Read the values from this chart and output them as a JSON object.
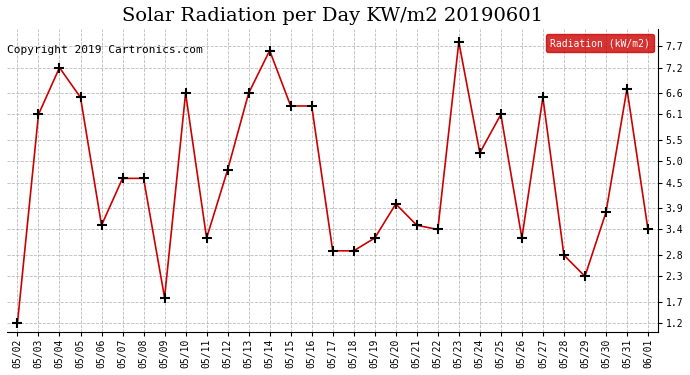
{
  "title": "Solar Radiation per Day KW/m2 20190601",
  "copyright_text": "Copyright 2019 Cartronics.com",
  "legend_label": "Radiation (kW/m2)",
  "dates": [
    "05/02",
    "05/03",
    "05/04",
    "05/05",
    "05/06",
    "05/07",
    "05/08",
    "05/09",
    "05/10",
    "05/11",
    "05/12",
    "05/13",
    "05/14",
    "05/15",
    "05/16",
    "05/17",
    "05/18",
    "05/19",
    "05/20",
    "05/21",
    "05/22",
    "05/23",
    "05/24",
    "05/25",
    "05/26",
    "05/27",
    "05/28",
    "05/29",
    "05/30",
    "05/31",
    "06/01"
  ],
  "values": [
    1.2,
    6.1,
    7.2,
    6.5,
    3.5,
    4.6,
    4.6,
    1.8,
    6.6,
    3.2,
    4.8,
    6.6,
    7.6,
    6.3,
    6.3,
    2.9,
    2.9,
    3.2,
    4.0,
    3.5,
    3.4,
    7.8,
    5.2,
    6.1,
    3.2,
    6.5,
    2.8,
    2.3,
    3.8,
    6.7,
    3.4
  ],
  "line_color": "#cc0000",
  "marker_color": "#000000",
  "bg_color": "#ffffff",
  "plot_bg_color": "#ffffff",
  "grid_color": "#aaaaaa",
  "ylim_min": 1.0,
  "ylim_max": 8.1,
  "yticks": [
    1.2,
    1.7,
    2.3,
    2.8,
    3.4,
    3.9,
    4.5,
    5.0,
    5.5,
    6.1,
    6.6,
    7.2,
    7.7
  ],
  "legend_bg": "#cc0000",
  "legend_text_color": "#ffffff",
  "title_fontsize": 14,
  "tick_fontsize": 7,
  "copyright_fontsize": 8
}
